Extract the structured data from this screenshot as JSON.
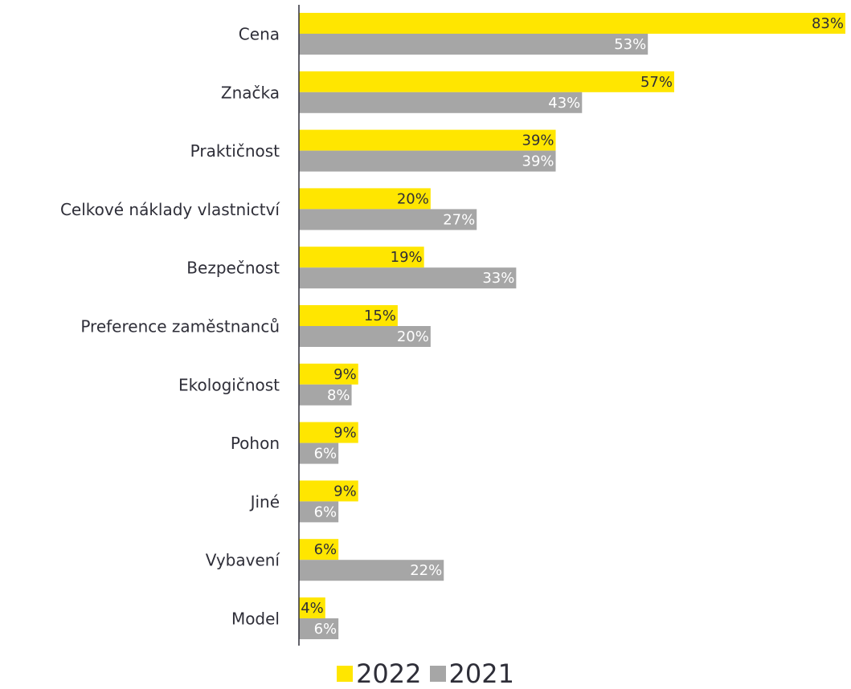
{
  "chart_data": {
    "type": "bar",
    "orientation": "horizontal",
    "categories": [
      "Cena",
      "Značka",
      "Praktičnost",
      "Celkové náklady vlastnictví",
      "Bezpečnost",
      "Preference zaměstnanců",
      "Ekologičnost",
      "Pohon",
      "Jiné",
      "Vybavení",
      "Model"
    ],
    "series": [
      {
        "name": "2022",
        "color": "#ffe600",
        "label_color": "#2e2e38",
        "values": [
          83,
          57,
          39,
          20,
          19,
          15,
          9,
          9,
          9,
          6,
          4
        ],
        "labels": [
          "83%",
          "57%",
          "39%",
          "20%",
          "19%",
          "15%",
          "9%",
          "9%",
          "9%",
          "6%",
          "4%"
        ]
      },
      {
        "name": "2021",
        "color": "#a6a6a6",
        "label_color": "#ffffff",
        "values": [
          53,
          43,
          39,
          27,
          33,
          20,
          8,
          6,
          6,
          22,
          6
        ],
        "labels": [
          "53%",
          "43%",
          "39%",
          "27%",
          "33%",
          "20%",
          "8%",
          "6%",
          "6%",
          "22%",
          "6%"
        ]
      }
    ],
    "xlim": [
      0,
      83
    ],
    "grid": false,
    "legend_position": "bottom-center"
  }
}
